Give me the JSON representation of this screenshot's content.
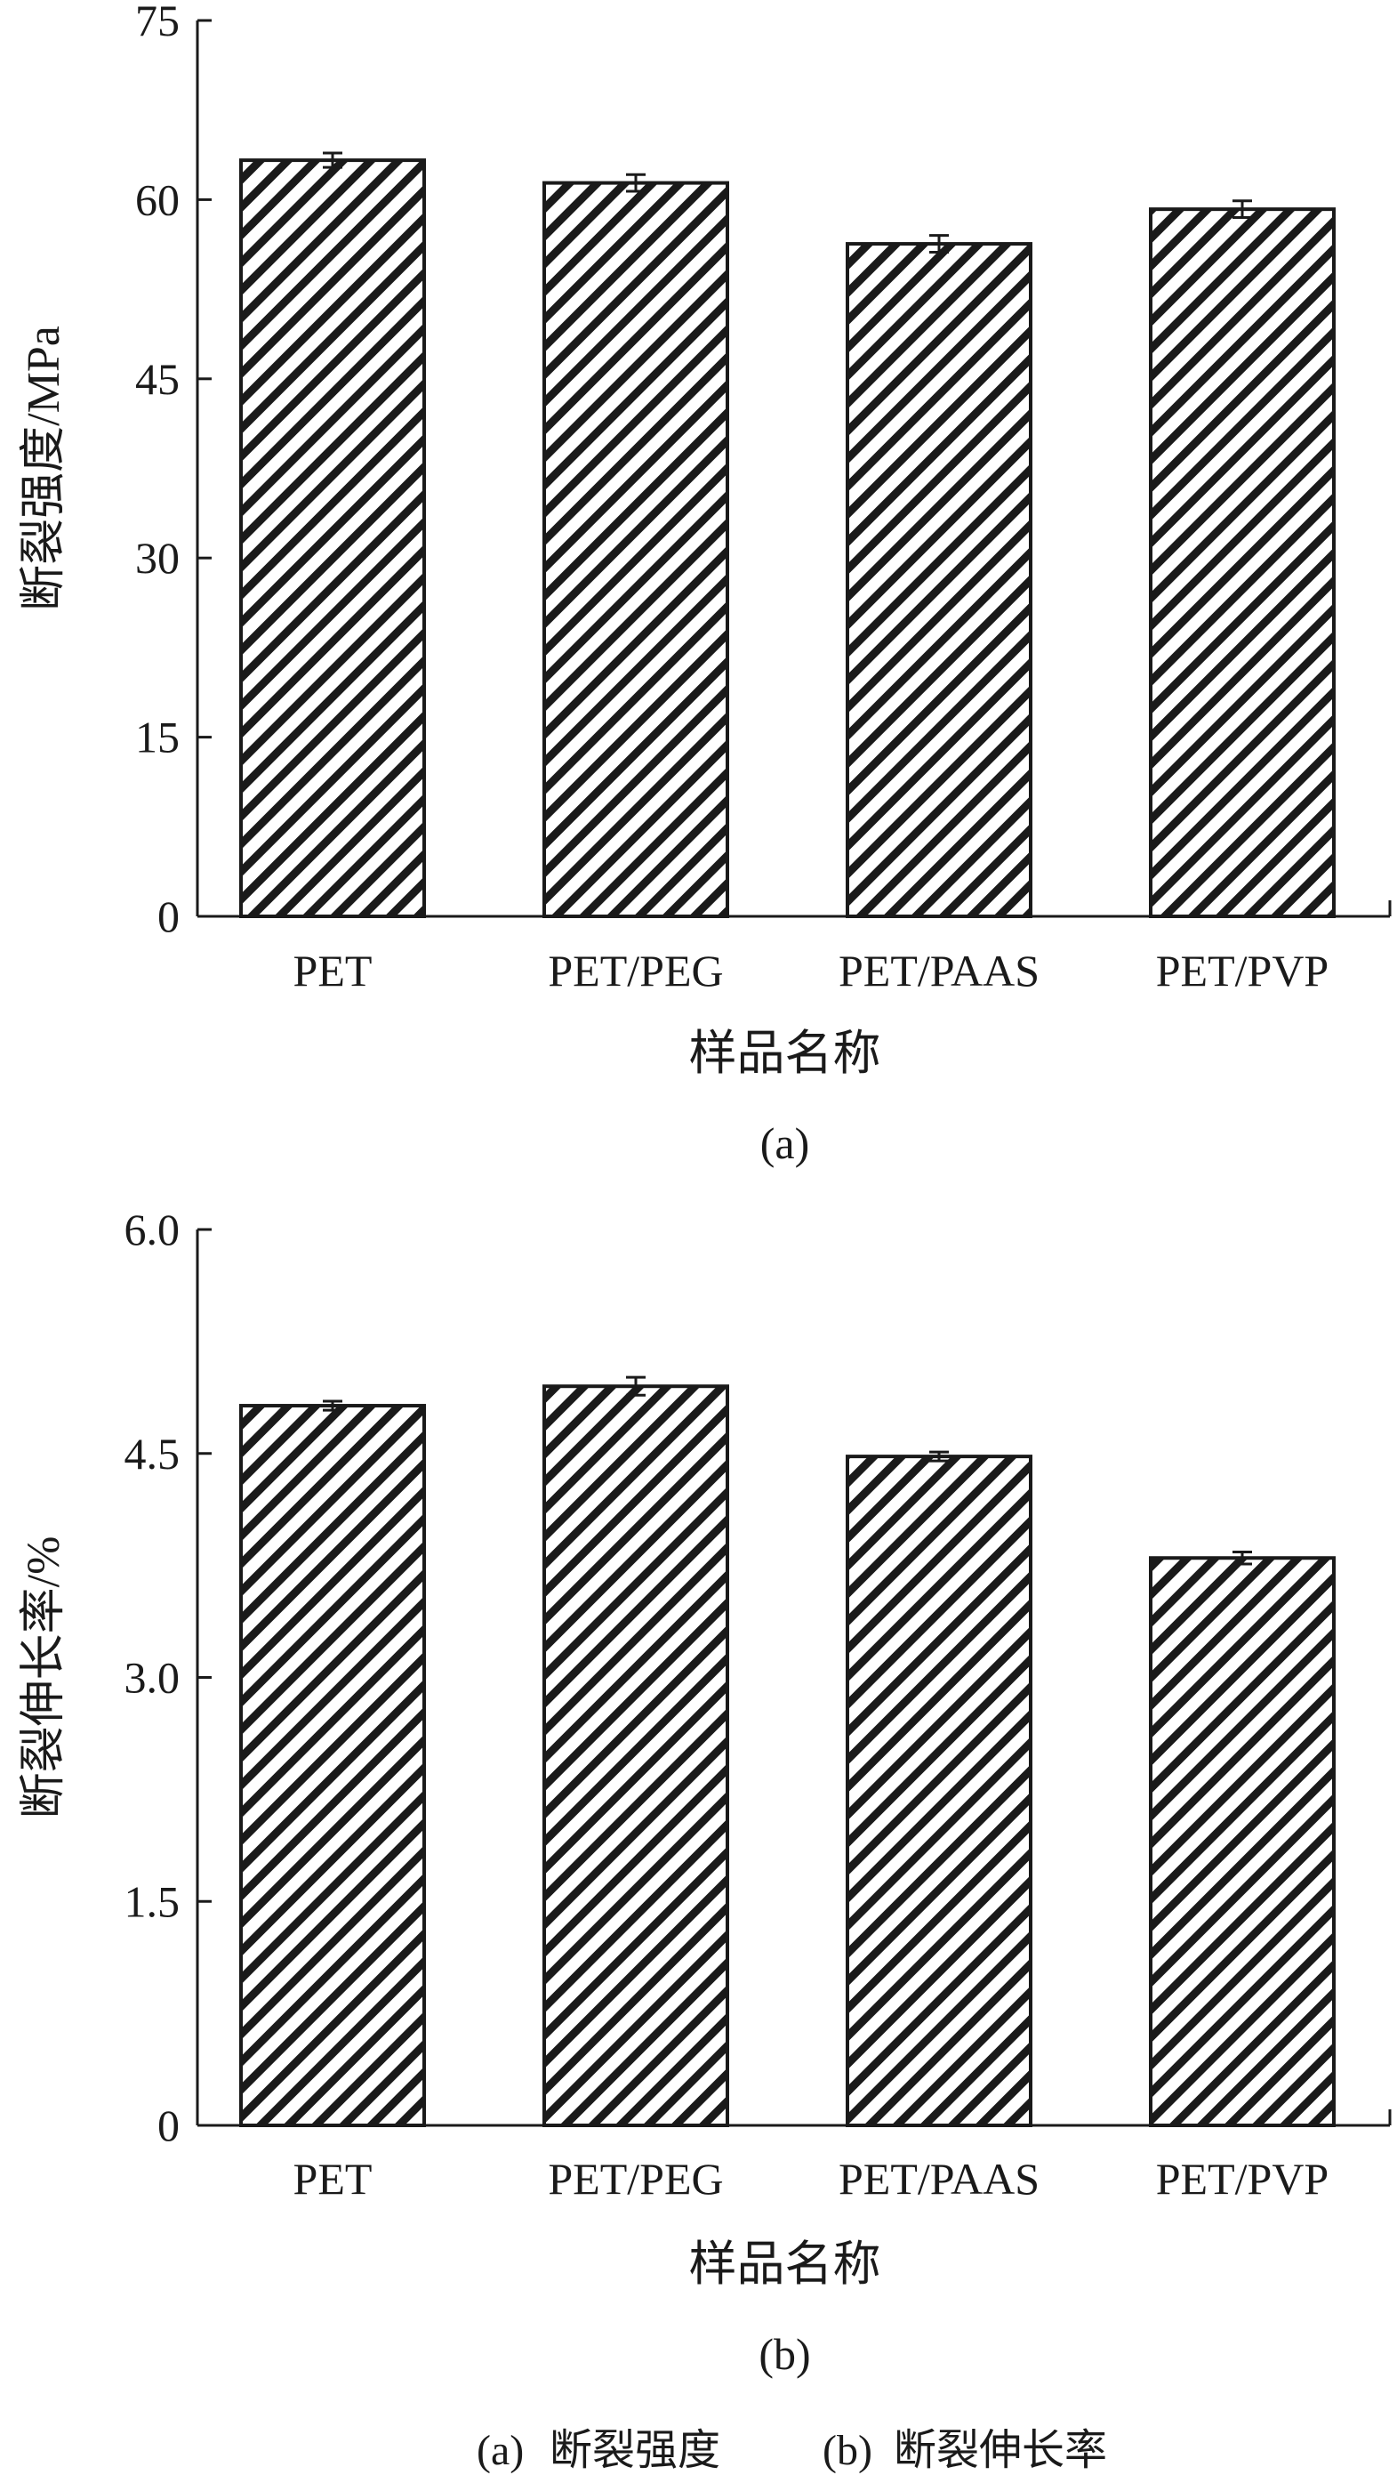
{
  "chart_data": [
    {
      "type": "bar",
      "panel_label": "(a)",
      "categories": [
        "PET",
        "PET/PEG",
        "PET/PAAS",
        "PET/PVP"
      ],
      "values": [
        63.3,
        61.4,
        56.3,
        59.2
      ],
      "errors": [
        0.6,
        0.7,
        0.7,
        0.7
      ],
      "xlabel": "样品名称",
      "ylabel": "断裂强度/MPa",
      "ylim": [
        0,
        75
      ],
      "yticks": [
        "0",
        "15",
        "30",
        "45",
        "60",
        "75"
      ],
      "grid": false,
      "fill_pattern": "diagonal-hatch"
    },
    {
      "type": "bar",
      "panel_label": "(b)",
      "categories": [
        "PET",
        "PET/PEG",
        "PET/PAAS",
        "PET/PVP"
      ],
      "values": [
        4.82,
        4.95,
        4.48,
        3.8
      ],
      "errors": [
        0.03,
        0.06,
        0.03,
        0.04
      ],
      "xlabel": "样品名称",
      "ylabel": "断裂伸长率/%",
      "ylim": [
        0,
        6
      ],
      "yticks": [
        "0",
        "1.5",
        "3.0",
        "4.5",
        "6.0"
      ],
      "grid": false,
      "fill_pattern": "diagonal-hatch"
    }
  ],
  "caption": {
    "a_label": "(a)",
    "a_text": "断裂强度",
    "b_label": "(b)",
    "b_text": "断裂伸长率"
  },
  "colors": {
    "ink": "#1a1a1a",
    "background": "#ffffff"
  }
}
